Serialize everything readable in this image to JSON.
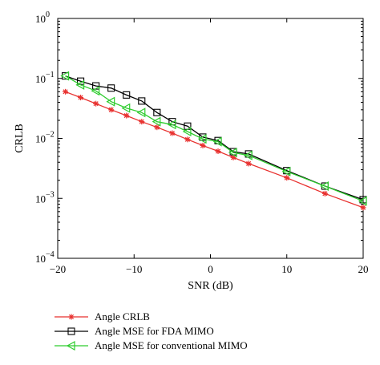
{
  "chart_data": {
    "type": "line",
    "xlabel": "SNR (dB)",
    "ylabel": "CRLB",
    "xlim": [
      -20,
      20
    ],
    "ylim": [
      0.0001,
      1
    ],
    "yscale": "log",
    "grid": false,
    "legend_position": "below plot, left",
    "x_ticks": [
      -20,
      -10,
      0,
      10,
      20
    ],
    "x_tick_labels": [
      "−20",
      "−10",
      "0",
      "10",
      "20"
    ],
    "y_ticks": [
      0.0001,
      0.001,
      0.01,
      0.1,
      1
    ],
    "y_tick_labels": [
      {
        "base": "10",
        "exp": "−4"
      },
      {
        "base": "10",
        "exp": "−3"
      },
      {
        "base": "10",
        "exp": "−2"
      },
      {
        "base": "10",
        "exp": "−1"
      },
      {
        "base": "10",
        "exp": "0"
      }
    ],
    "series": [
      {
        "name": "Angle CRLB",
        "color": "#e8312f",
        "marker": "asterisk",
        "x": [
          -19,
          -17,
          -15,
          -13,
          -11,
          -9,
          -7,
          -5,
          -3,
          -1,
          1,
          3,
          5,
          10,
          15,
          20
        ],
        "y": [
          0.06,
          0.048,
          0.038,
          0.03,
          0.024,
          0.019,
          0.0153,
          0.0122,
          0.0096,
          0.0076,
          0.0061,
          0.0048,
          0.0038,
          0.0022,
          0.0012,
          0.0007
        ]
      },
      {
        "name": "Angle MSE for FDA MIMO",
        "color": "#000000",
        "marker": "square",
        "x": [
          -19,
          -17,
          -15,
          -13,
          -11,
          -9,
          -7,
          -5,
          -3,
          -1,
          1,
          3,
          5,
          10,
          15,
          20
        ],
        "y": [
          0.11,
          0.09,
          0.075,
          0.069,
          0.053,
          0.042,
          0.027,
          0.019,
          0.016,
          0.0105,
          0.0092,
          0.006,
          0.0055,
          0.0029,
          0.0016,
          0.00095
        ]
      },
      {
        "name": "Angle MSE for conventional MIMO",
        "color": "#2ecc2e",
        "marker": "triangle-left",
        "x": [
          -19,
          -17,
          -15,
          -13,
          -11,
          -9,
          -7,
          -5,
          -3,
          -1,
          1,
          3,
          5,
          10,
          15,
          20
        ],
        "y": [
          0.11,
          0.078,
          0.062,
          0.041,
          0.032,
          0.027,
          0.019,
          0.017,
          0.013,
          0.0098,
          0.0088,
          0.0058,
          0.0052,
          0.0028,
          0.0016,
          0.0009
        ]
      }
    ]
  }
}
